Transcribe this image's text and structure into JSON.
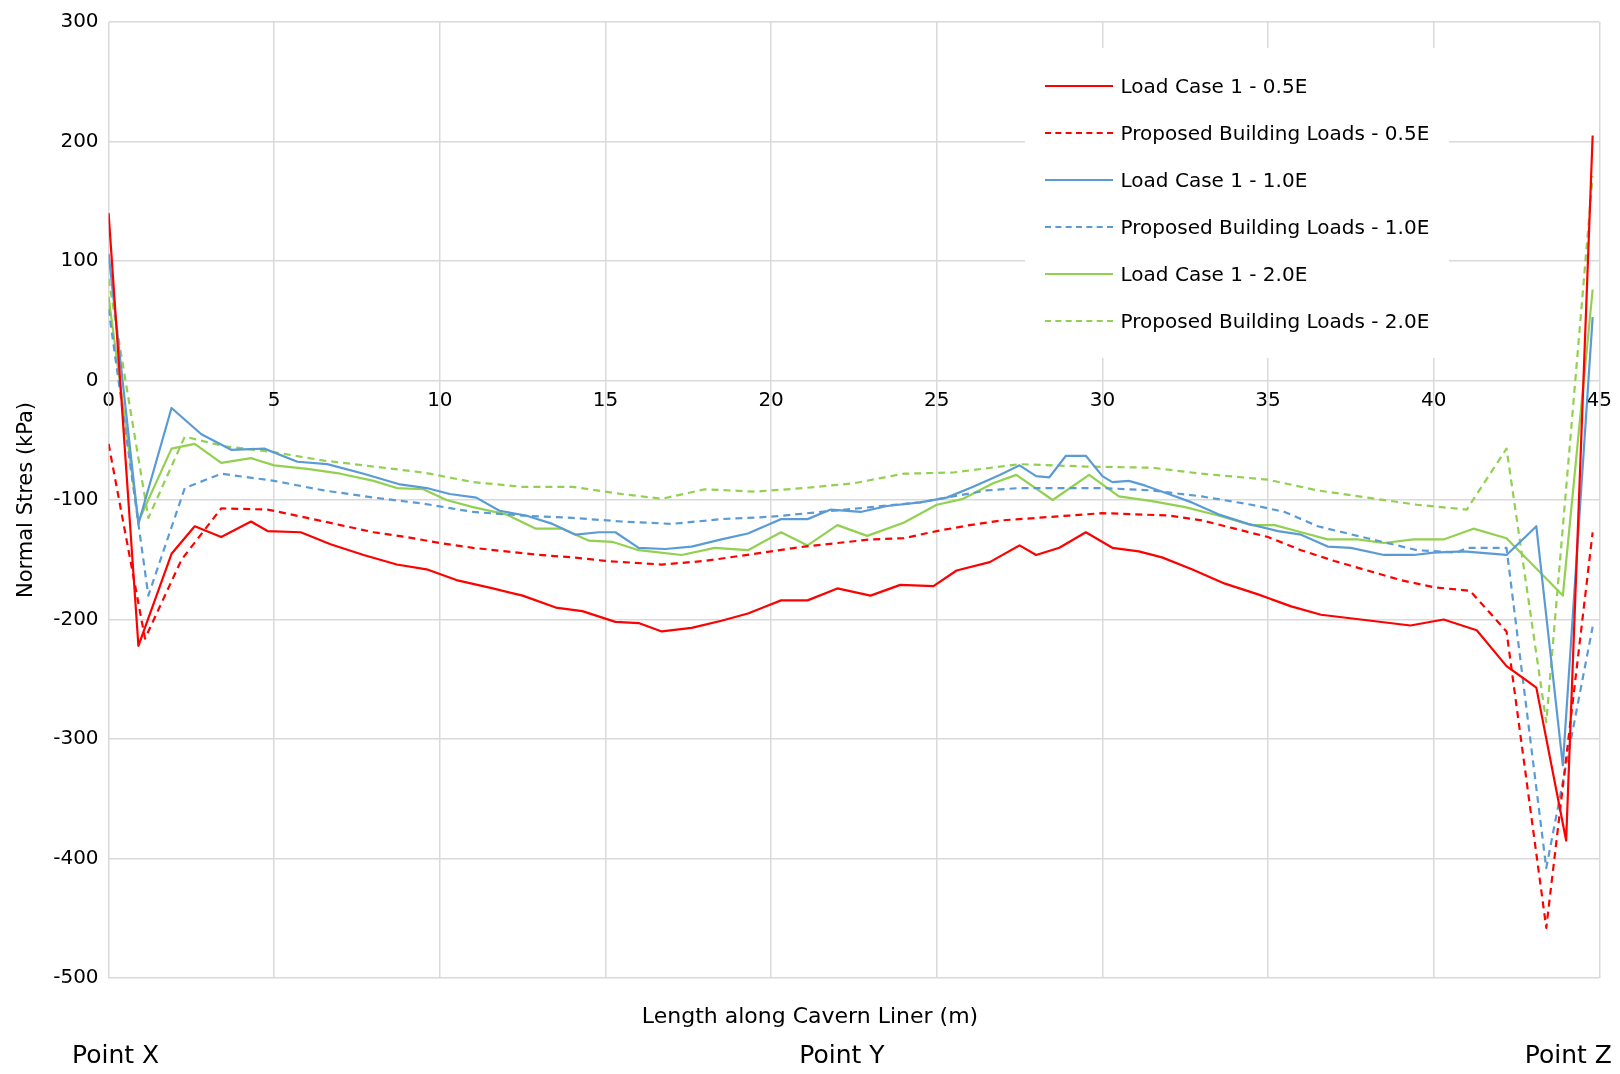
{
  "chart_data": {
    "type": "line",
    "xlabel": "Length along Cavern Liner (m)",
    "ylabel": "Normal Stres (kPa)",
    "xlim": [
      0,
      45
    ],
    "xticks": [
      0,
      5,
      10,
      15,
      20,
      25,
      30,
      35,
      40,
      45
    ],
    "ylim": [
      -500,
      300
    ],
    "yticks": [
      -500,
      -400,
      -300,
      -200,
      -100,
      0,
      100,
      200,
      300
    ],
    "grid": true,
    "legend": "top right",
    "annotations": [
      "Point X",
      "Point Y",
      "Point Z"
    ],
    "series": [
      {
        "name": "Load Case 1 - 0.5E",
        "color": "#ff0000",
        "line_style": "solid",
        "x": [
          0,
          0.9,
          1.9,
          2.6,
          3.4,
          4.3,
          4.8,
          5.8,
          6.7,
          7.7,
          8.7,
          9.6,
          10.5,
          11.6,
          12.5,
          13.5,
          14.3,
          15.3,
          16,
          16.7,
          17.6,
          18.5,
          19.3,
          20.3,
          21.1,
          22,
          23,
          23.9,
          24.9,
          25.6,
          26.6,
          27.5,
          28,
          28.7,
          29.5,
          30.3,
          31.1,
          31.8,
          32.7,
          33.7,
          34.7,
          35.7,
          36.6,
          37.8,
          39.3,
          40.3,
          41.3,
          42.2,
          43.1,
          44,
          44.8
        ],
        "values": [
          140,
          -222,
          -145,
          -122,
          -131,
          -118,
          -126,
          -127,
          -137,
          -146,
          -154,
          -158,
          -167,
          -174,
          -180,
          -190,
          -193,
          -202,
          -203,
          -210,
          -207,
          -201,
          -195,
          -184,
          -184,
          -174,
          -180,
          -171,
          -172,
          -159,
          -152,
          -138,
          -146,
          -140,
          -127,
          -140,
          -143,
          -148,
          -158,
          -170,
          -179,
          -189,
          -196,
          -200,
          -205,
          -200,
          -209,
          -239,
          -257,
          -385,
          205
        ]
      },
      {
        "name": "Proposed Building Loads - 0.5E",
        "color": "#ff0000",
        "line_style": "dashed",
        "x": [
          0,
          1.1,
          2.2,
          3.4,
          4.8,
          6,
          7,
          8,
          9,
          10,
          11,
          12,
          13,
          14,
          15,
          16.7,
          18,
          19,
          20,
          21,
          22,
          23,
          24,
          25,
          26,
          27,
          28,
          29,
          30,
          31,
          32,
          33,
          34,
          35,
          36,
          37,
          38,
          39,
          40,
          41.1,
          42.2,
          43.4,
          44.8
        ],
        "values": [
          -53,
          -216,
          -150,
          -107,
          -108,
          -115,
          -121,
          -127,
          -131,
          -136,
          -140,
          -143,
          -146,
          -148,
          -151,
          -154,
          -151,
          -147,
          -143,
          -139,
          -136,
          -133,
          -132,
          -126,
          -121,
          -117,
          -115,
          -113,
          -111,
          -112,
          -113,
          -117,
          -124,
          -131,
          -142,
          -151,
          -159,
          -167,
          -173,
          -176,
          -210,
          -458,
          -127
        ]
      },
      {
        "name": "Load Case 1 - 1.0E",
        "color": "#5b9bd5",
        "line_style": "solid",
        "x": [
          0,
          0.9,
          1.9,
          2.8,
          3.7,
          4.7,
          5.7,
          6.6,
          7.7,
          8.8,
          9.6,
          10.3,
          11.1,
          11.8,
          12.6,
          13.4,
          14.1,
          14.8,
          15.3,
          16,
          16.8,
          17.6,
          18.5,
          19.3,
          20.3,
          21.1,
          21.8,
          22.7,
          23.5,
          24.5,
          25.3,
          26.1,
          26.9,
          27.5,
          28,
          28.4,
          28.9,
          29.5,
          30,
          30.3,
          30.8,
          31.3,
          32,
          32.7,
          33.5,
          34.4,
          35.3,
          36,
          36.8,
          37.5,
          38.5,
          39.4,
          40,
          40.9,
          42.2,
          43.1,
          43.9,
          44.8
        ],
        "values": [
          106,
          -120,
          -23,
          -45,
          -58,
          -57,
          -68,
          -70,
          -78,
          -87,
          -90,
          -95,
          -98,
          -109,
          -113,
          -120,
          -129,
          -127,
          -127,
          -140,
          -141,
          -139,
          -133,
          -128,
          -116,
          -116,
          -108,
          -110,
          -105,
          -102,
          -98,
          -89,
          -79,
          -71,
          -80,
          -81,
          -63,
          -63,
          -80,
          -85,
          -84,
          -88,
          -95,
          -102,
          -112,
          -120,
          -126,
          -129,
          -139,
          -140,
          -146,
          -146,
          -144,
          -143,
          -146,
          -122,
          -322,
          53
        ]
      },
      {
        "name": "Proposed Building Loads - 1.0E",
        "color": "#5b9bd5",
        "line_style": "dashed",
        "x": [
          0,
          1.2,
          2.3,
          3.4,
          5,
          6.5,
          8,
          9.5,
          11,
          12.5,
          14,
          15.5,
          17,
          18.5,
          20,
          21.5,
          23,
          24.5,
          25.5,
          26.5,
          27.5,
          30,
          31.5,
          33,
          34.5,
          35.5,
          36.5,
          38,
          39.5,
          40.7,
          41,
          42.2,
          43.4,
          44.8
        ],
        "values": [
          60,
          -180,
          -90,
          -78,
          -84,
          -92,
          -98,
          -103,
          -110,
          -113,
          -115,
          -118,
          -120,
          -116,
          -114,
          -110,
          -106,
          -102,
          -97,
          -92,
          -90,
          -90,
          -92,
          -97,
          -104,
          -110,
          -122,
          -132,
          -142,
          -144,
          -140,
          -140,
          -408,
          -206
        ]
      },
      {
        "name": "Load Case 1 - 2.0E",
        "color": "#92d050",
        "line_style": "solid",
        "x": [
          0,
          0.9,
          1.9,
          2.6,
          3.4,
          4.3,
          5,
          6,
          7,
          8,
          8.7,
          9.5,
          10.2,
          11,
          12,
          12.9,
          13.7,
          14.5,
          15.2,
          16,
          17.3,
          18.3,
          19.3,
          20.3,
          21.1,
          22,
          22.9,
          24,
          25,
          25.8,
          26.7,
          27.4,
          28.5,
          29.6,
          30.5,
          31.5,
          32.5,
          33.5,
          34.5,
          35.2,
          36,
          36.8,
          37.7,
          38.5,
          39.4,
          40.3,
          41.2,
          42.2,
          43.9,
          44.8
        ],
        "values": [
          70,
          -118,
          -57,
          -53,
          -69,
          -65,
          -71,
          -74,
          -78,
          -84,
          -90,
          -91,
          -100,
          -106,
          -112,
          -124,
          -124,
          -134,
          -135,
          -142,
          -146,
          -140,
          -142,
          -127,
          -138,
          -121,
          -130,
          -119,
          -104,
          -99,
          -86,
          -79,
          -100,
          -79,
          -97,
          -101,
          -106,
          -113,
          -121,
          -121,
          -127,
          -133,
          -133,
          -136,
          -133,
          -133,
          -124,
          -132,
          -180,
          76
        ]
      },
      {
        "name": "Proposed Building Loads - 2.0E",
        "color": "#92d050",
        "line_style": "dashed",
        "x": [
          0,
          1.2,
          2.3,
          3.5,
          5,
          6.5,
          8,
          9.5,
          11,
          12.5,
          14,
          15.5,
          16.7,
          18,
          19.5,
          21,
          22.5,
          24,
          25.5,
          27.5,
          29.5,
          31.5,
          33,
          35,
          36.5,
          38,
          39.5,
          41,
          42.2,
          43.4,
          44.8
        ],
        "values": [
          85,
          -115,
          -47,
          -55,
          -60,
          -67,
          -72,
          -77,
          -85,
          -89,
          -89,
          -95,
          -99,
          -91,
          -93,
          -90,
          -86,
          -78,
          -77,
          -70,
          -72,
          -73,
          -78,
          -83,
          -92,
          -98,
          -104,
          -108,
          -57,
          -286,
          171
        ]
      }
    ]
  }
}
